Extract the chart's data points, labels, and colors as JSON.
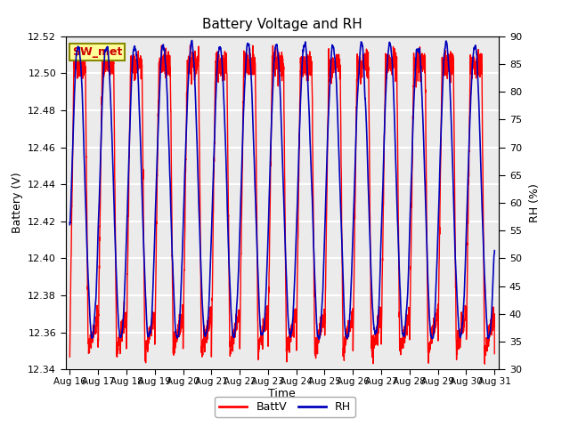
{
  "title": "Battery Voltage and RH",
  "xlabel": "Time",
  "ylabel_left": "Battery (V)",
  "ylabel_right": "RH (%)",
  "ylim_left": [
    12.34,
    12.52
  ],
  "ylim_right": [
    30,
    90
  ],
  "yticks_left": [
    12.34,
    12.36,
    12.38,
    12.4,
    12.42,
    12.44,
    12.46,
    12.48,
    12.5,
    12.52
  ],
  "yticks_right": [
    30,
    35,
    40,
    45,
    50,
    55,
    60,
    65,
    70,
    75,
    80,
    85,
    90
  ],
  "color_battv": "#FF0000",
  "color_rh": "#0000BB",
  "legend_label_battv": "BattV",
  "legend_label_rh": "RH",
  "annotation_text": "SW_met",
  "annotation_bg": "#FFFF99",
  "annotation_border": "#888800",
  "background_color": "#FFFFFF",
  "plot_bg_color": "#EBEBEB",
  "grid_color": "#FFFFFF",
  "x_tick_labels": [
    "Aug 16",
    "Aug 17",
    "Aug 18",
    "Aug 19",
    "Aug 20",
    "Aug 21",
    "Aug 22",
    "Aug 23",
    "Aug 24",
    "Aug 25",
    "Aug 26",
    "Aug 27",
    "Aug 28",
    "Aug 29",
    "Aug 30",
    "Aug 31"
  ],
  "x_tick_positions": [
    0,
    1,
    2,
    3,
    4,
    5,
    6,
    7,
    8,
    9,
    10,
    11,
    12,
    13,
    14,
    15
  ],
  "xlim": [
    -0.15,
    15.15
  ],
  "num_cycles": 15,
  "seed": 7
}
